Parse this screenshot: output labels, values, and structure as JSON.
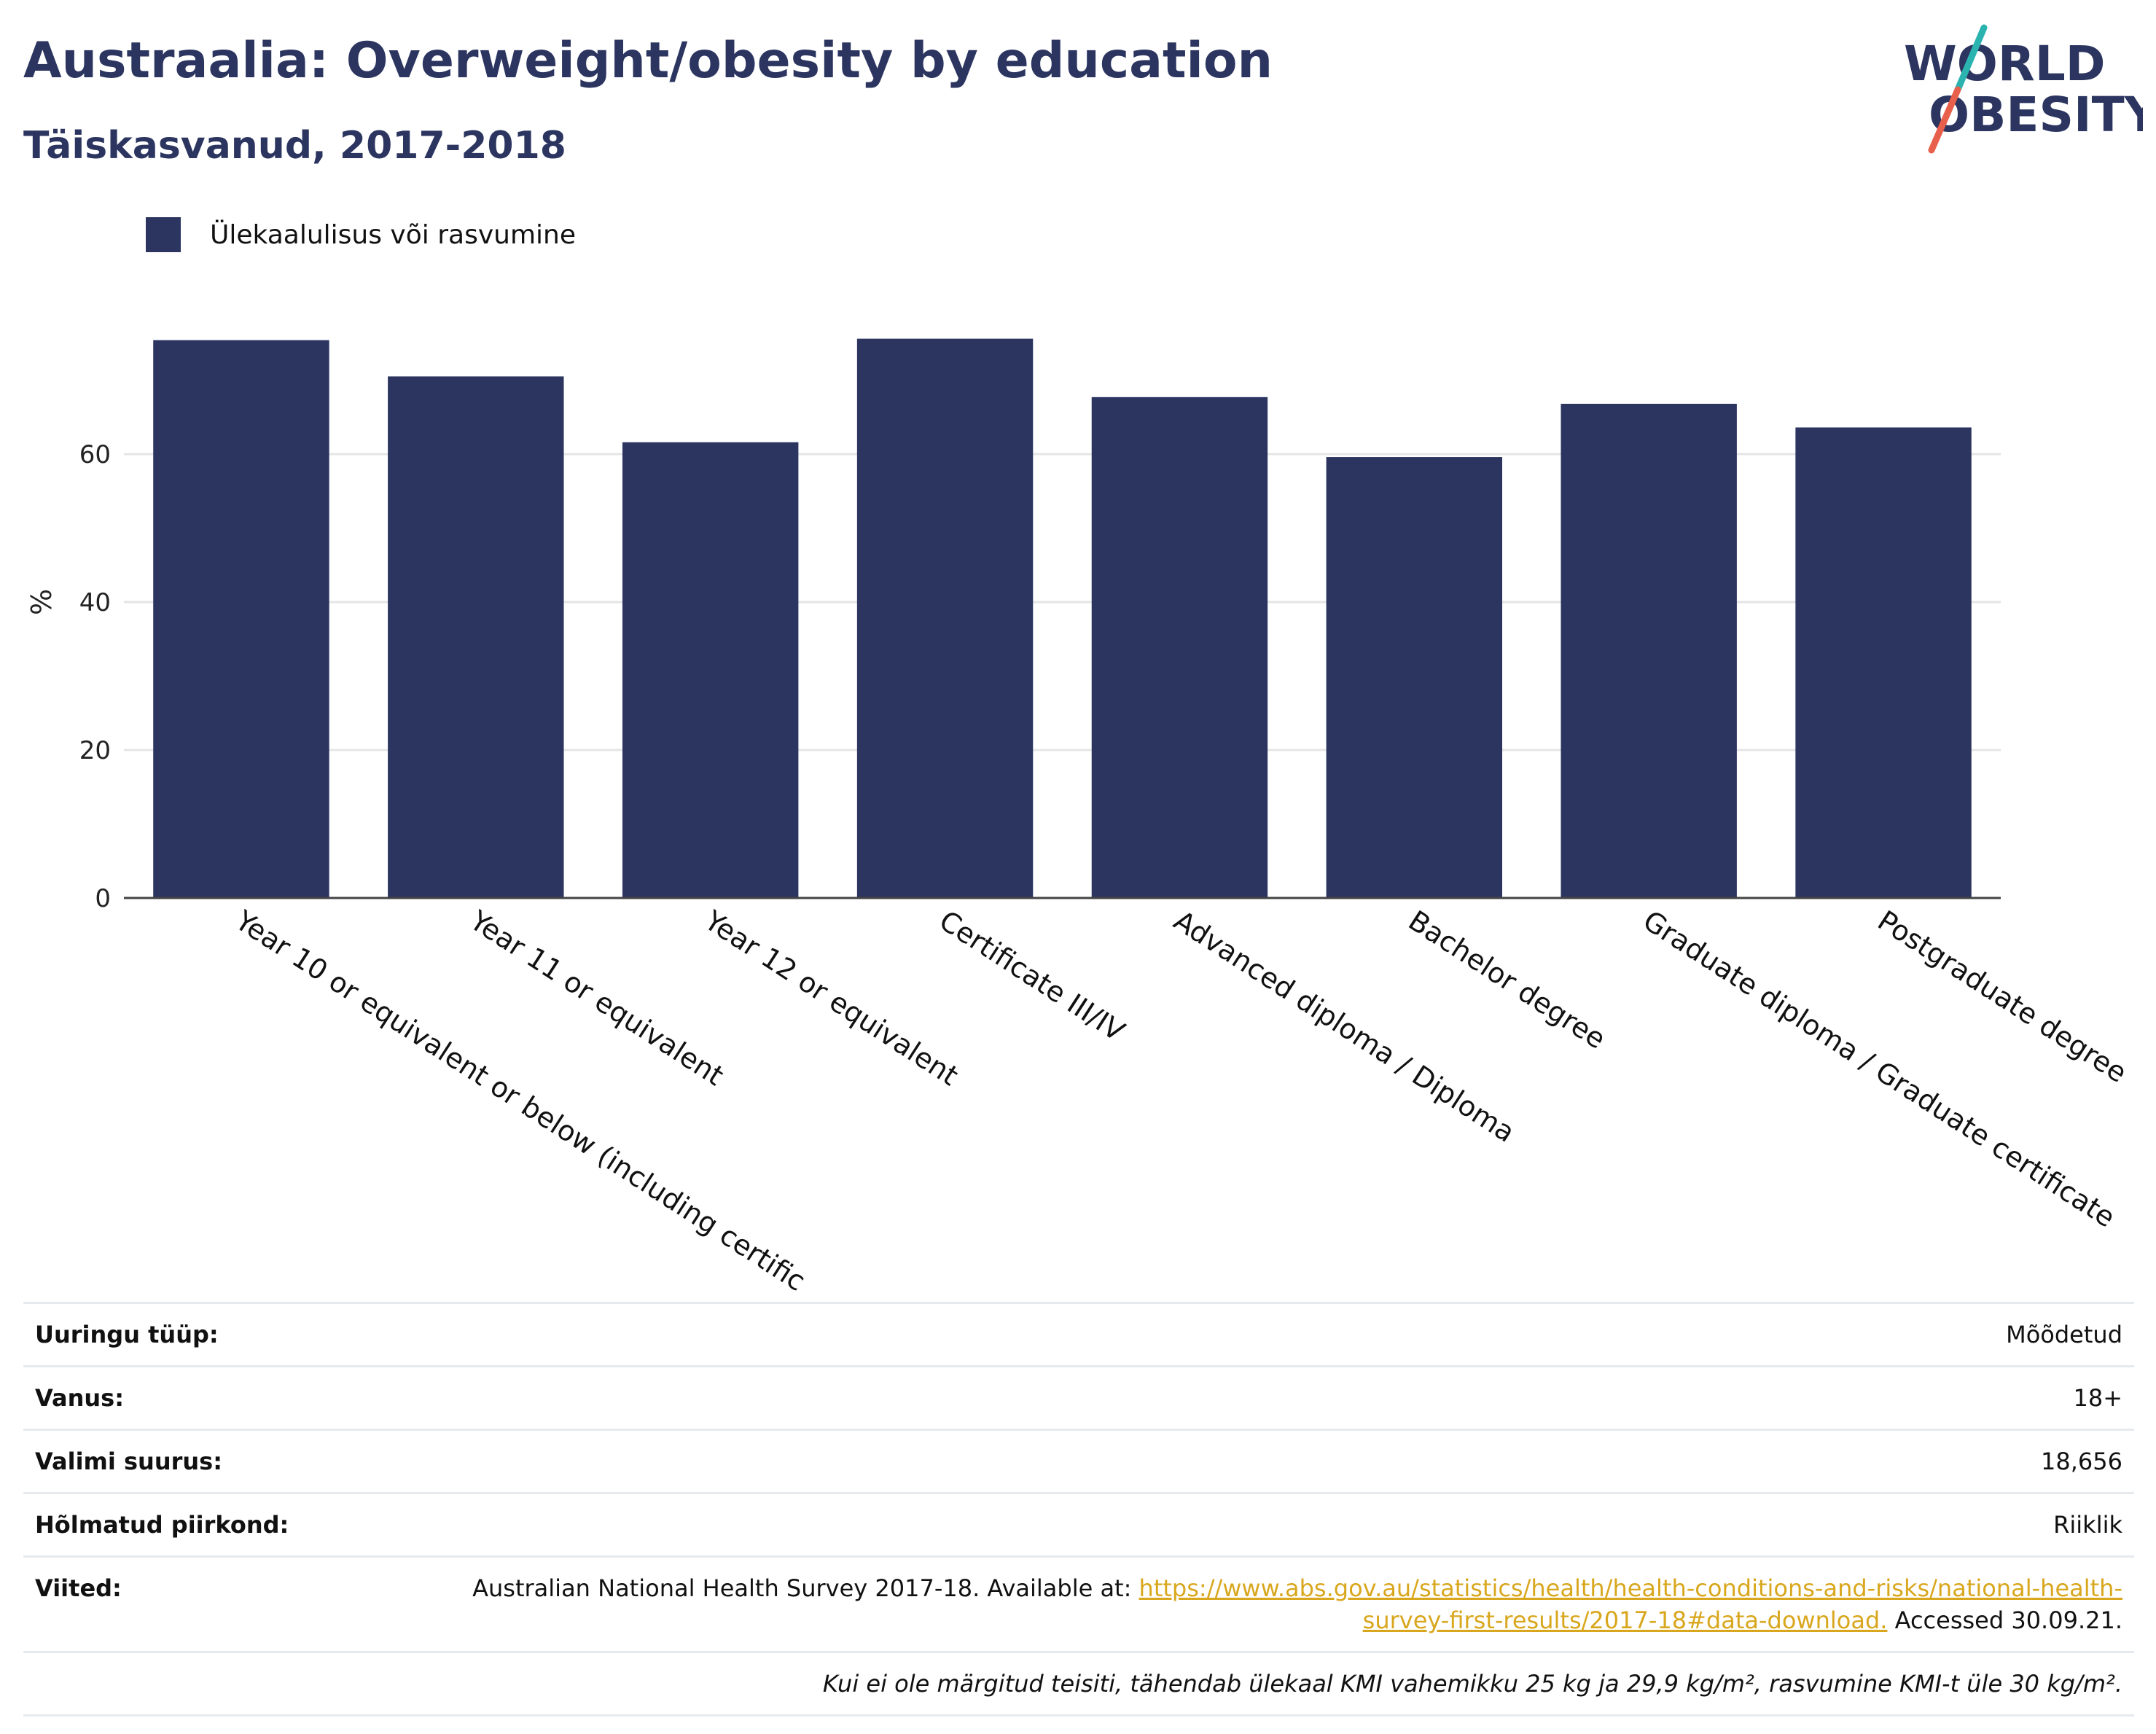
{
  "header": {
    "title": "Austraalia: Overweight/obesity by education",
    "subtitle": "Täiskasvanud, 2017-2018"
  },
  "logo": {
    "line1": "WORLD",
    "line2": "OBESITY",
    "colors": {
      "text": "#2b3560",
      "slash_top": "#2bb3b0",
      "slash_bottom": "#e8604c"
    }
  },
  "legend": {
    "label": "Ülekaalulisus või rasvumine"
  },
  "chart_data": {
    "type": "bar",
    "categories": [
      "Year 10 or equivalent or below (including certific",
      "Year 11 or equivalent",
      "Year 12 or equivalent",
      "Certificate III/IV",
      "Advanced diploma / Diploma",
      "Bachelor degree",
      "Graduate diploma / Graduate certificate",
      "Postgraduate degree"
    ],
    "series": [
      {
        "name": "Ülekaalulisus või rasvumine",
        "values": [
          75.4,
          70.5,
          61.6,
          75.6,
          67.7,
          59.6,
          66.8,
          63.6
        ],
        "color": "#2b3560"
      }
    ],
    "ylabel": "%",
    "yticks": [
      0,
      20,
      40,
      60
    ],
    "ylim": [
      0,
      80
    ],
    "grid": true,
    "legend_position": "top-left"
  },
  "meta": {
    "rows": [
      {
        "key": "Uuringu tüüp:",
        "value": "Mõõdetud"
      },
      {
        "key": "Vanus:",
        "value": "18+"
      },
      {
        "key": "Valimi suurus:",
        "value": "18,656"
      },
      {
        "key": "Hõlmatud piirkond:",
        "value": "Riiklik"
      }
    ],
    "references": {
      "key": "Viited:",
      "prefix": "Australian National Health Survey 2017-18. Available at: ",
      "link": "https://www.abs.gov.au/statistics/health/health-conditions-and-risks/national-health-survey-first-results/2017-18#data-download.",
      "suffix": " Accessed 30.09.21."
    },
    "note": "Kui ei ole märgitud teisiti, tähendab ülekaal KMI vahemikku 25 kg ja 29,9 kg/m², rasvumine KMI-t üle 30 kg/m²."
  }
}
